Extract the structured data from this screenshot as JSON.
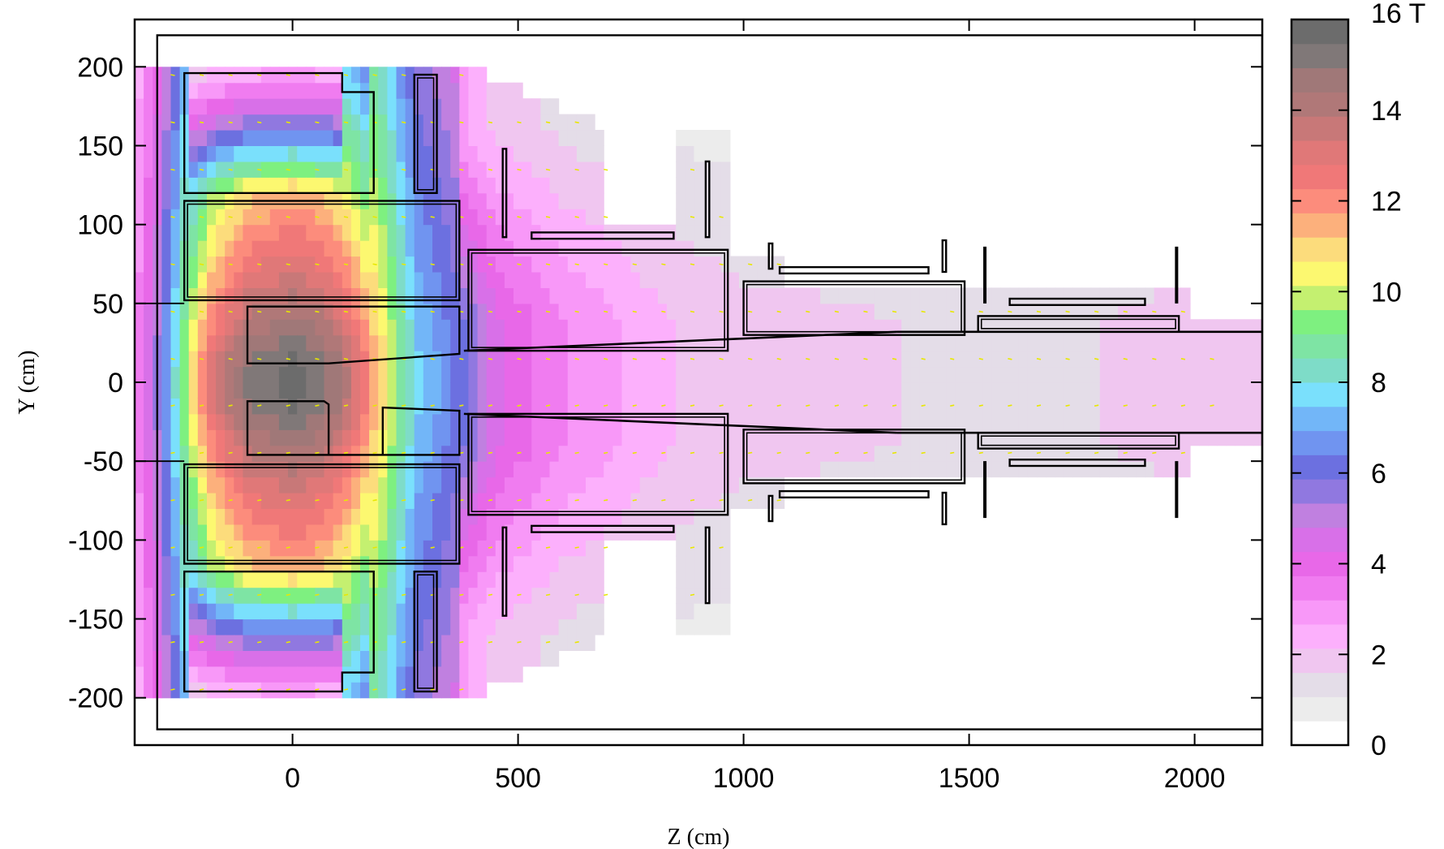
{
  "chart_data": {
    "type": "heatmap",
    "title": "",
    "xlabel": "Z (cm)",
    "ylabel": "Y (cm)",
    "xlim": [
      -350,
      2150
    ],
    "ylim": [
      -230,
      230
    ],
    "xticks": [
      0,
      500,
      1000,
      1500,
      2000
    ],
    "xtick_labels": [
      "0",
      "500",
      "1000",
      "1500",
      "2000"
    ],
    "yticks": [
      200,
      150,
      100,
      50,
      0,
      -50,
      -100,
      -150,
      -200
    ],
    "ytick_labels": [
      "200",
      "150",
      "100",
      "50",
      "0",
      "-50",
      "-100",
      "-150",
      "-200"
    ],
    "grid": false,
    "colorbar": {
      "range": [
        0,
        16
      ],
      "unit": "T",
      "ticks": [
        0,
        2,
        4,
        6,
        8,
        10,
        12,
        14,
        16
      ],
      "tick_labels": [
        "0",
        "2",
        "4",
        "6",
        "8",
        "10",
        "12",
        "14",
        "16 T"
      ],
      "colors": [
        "#ffffff",
        "#ececec",
        "#e4dde8",
        "#f0c6f0",
        "#fcb0fc",
        "#f898f8",
        "#f07cf0",
        "#e868e8",
        "#d870e8",
        "#c080e0",
        "#9078e0",
        "#6c70e0",
        "#7094f0",
        "#72b6f8",
        "#7ae0fc",
        "#7edcc8",
        "#7ee4a4",
        "#7ef080",
        "#c4f070",
        "#fcf870",
        "#fcdc7c",
        "#fcb07c",
        "#fc8c7c",
        "#f07878",
        "#e07878",
        "#c87878",
        "#b07878",
        "#a07878",
        "#807878",
        "#6c6c6c"
      ]
    },
    "field_profile": [
      {
        "z": -350,
        "B": 3.0
      },
      {
        "z": -300,
        "B": 5.5
      },
      {
        "z": -260,
        "B": 8.0
      },
      {
        "z": -220,
        "B": 11.0
      },
      {
        "z": -180,
        "B": 13.0
      },
      {
        "z": -140,
        "B": 14.0
      },
      {
        "z": -100,
        "B": 15.0
      },
      {
        "z": -50,
        "B": 15.3
      },
      {
        "z": 0,
        "B": 15.6
      },
      {
        "z": 50,
        "B": 15.3
      },
      {
        "z": 100,
        "B": 14.5
      },
      {
        "z": 150,
        "B": 13.0
      },
      {
        "z": 180,
        "B": 11.5
      },
      {
        "z": 210,
        "B": 10.5
      },
      {
        "z": 240,
        "B": 9.0
      },
      {
        "z": 280,
        "B": 7.5
      },
      {
        "z": 330,
        "B": 6.8
      },
      {
        "z": 380,
        "B": 6.0
      },
      {
        "z": 420,
        "B": 5.0
      },
      {
        "z": 460,
        "B": 4.3
      },
      {
        "z": 500,
        "B": 4.0
      },
      {
        "z": 600,
        "B": 3.2
      },
      {
        "z": 700,
        "B": 2.8
      },
      {
        "z": 800,
        "B": 2.3
      },
      {
        "z": 900,
        "B": 2.0
      },
      {
        "z": 1000,
        "B": 1.8
      },
      {
        "z": 1200,
        "B": 1.7
      },
      {
        "z": 1500,
        "B": 1.5
      },
      {
        "z": 1800,
        "B": 1.6
      },
      {
        "z": 2000,
        "B": 1.8
      },
      {
        "z": 2150,
        "B": 2.0
      }
    ]
  }
}
